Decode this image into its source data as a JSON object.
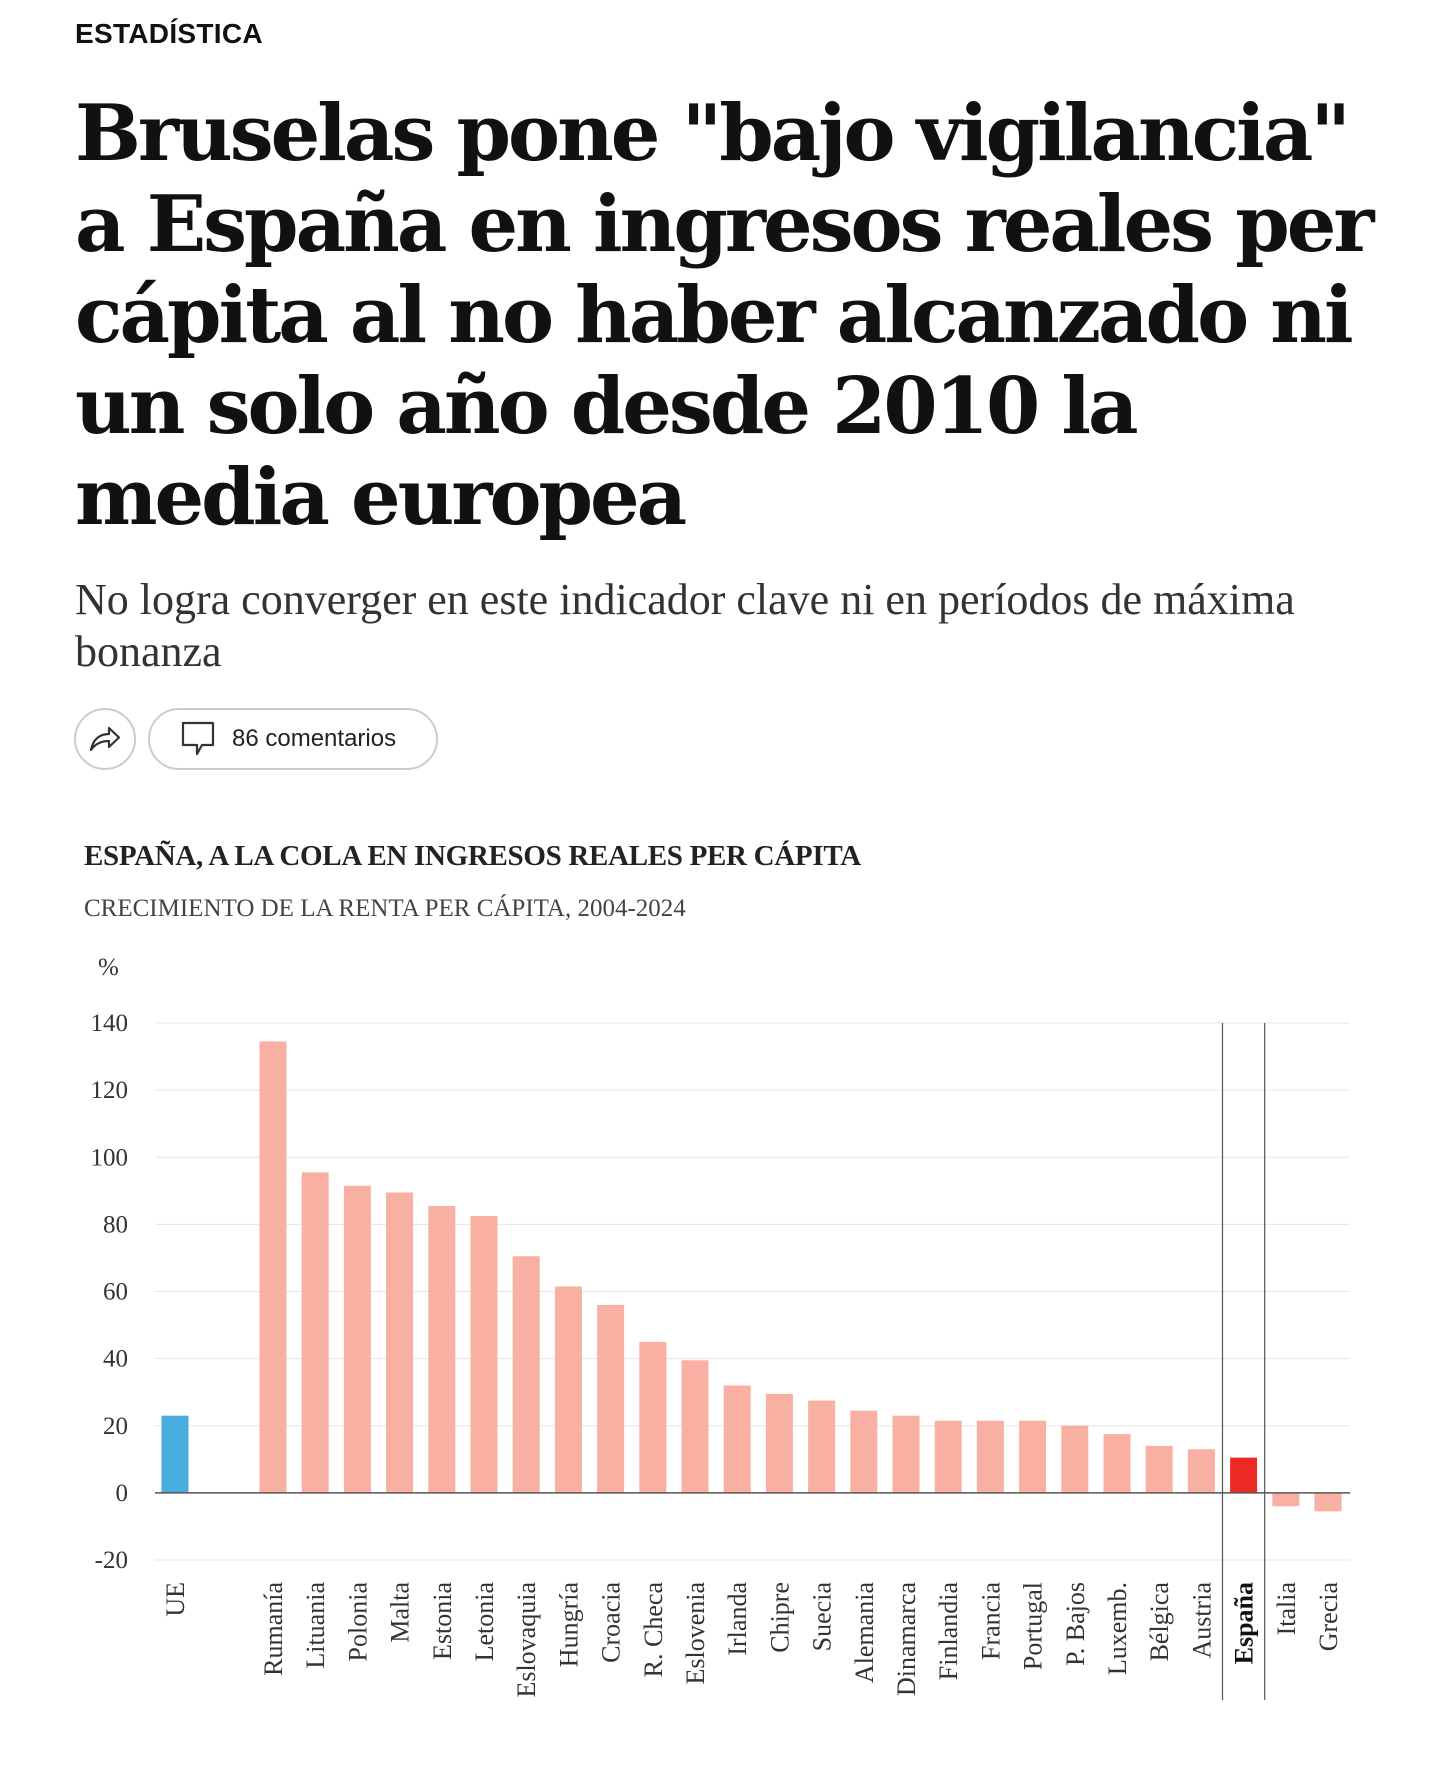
{
  "section": {
    "label": "ESTADÍSTICA"
  },
  "article": {
    "headline": "Bruselas pone \"bajo vigilancia\" a España en ingresos reales per cápita al no haber alcanzado ni un solo año desde 2010 la media europea",
    "subtitle": "No logra converger en este indicador clave ni en períodos de máxima bonanza"
  },
  "actions": {
    "share_icon": "share-icon",
    "comment_icon": "comment-icon",
    "comments_label": "86 comentarios"
  },
  "chart_data": {
    "type": "bar",
    "title": "ESPAÑA, A LA COLA EN INGRESOS REALES PER CÁPITA",
    "subtitle": "CRECIMIENTO DE LA RENTA PER CÁPITA, 2004-2024",
    "ylabel": "%",
    "xlabel": "",
    "ylim": [
      -20,
      140
    ],
    "yticks": [
      140,
      120,
      100,
      80,
      60,
      40,
      20,
      0,
      -20
    ],
    "grid": true,
    "categories": [
      "UE",
      "Rumanía",
      "Lituania",
      "Polonia",
      "Malta",
      "Estonia",
      "Letonia",
      "Eslovaquia",
      "Hungría",
      "Croacia",
      "R. Checa",
      "Eslovenia",
      "Irlanda",
      "Chipre",
      "Suecia",
      "Alemania",
      "Dinamarca",
      "Finlandia",
      "Francia",
      "Portugal",
      "P. Bajos",
      "Luxemb.",
      "Bélgica",
      "Austria",
      "España",
      "Italia",
      "Grecia"
    ],
    "values": [
      23,
      134.5,
      95.5,
      91.5,
      89.5,
      85.5,
      82.5,
      70.5,
      61.5,
      56,
      45,
      39.5,
      32,
      29.5,
      27.5,
      24.5,
      23,
      21.5,
      21.5,
      21.5,
      20,
      17.5,
      14,
      13,
      10.5,
      -4,
      -5.5
    ],
    "highlight": "España",
    "colors": {
      "eu": "#49ADE0",
      "default": "#F7B0A1",
      "highlight": "#EE2A24",
      "grid": "#E6E6E6",
      "axis": "#555555"
    }
  }
}
